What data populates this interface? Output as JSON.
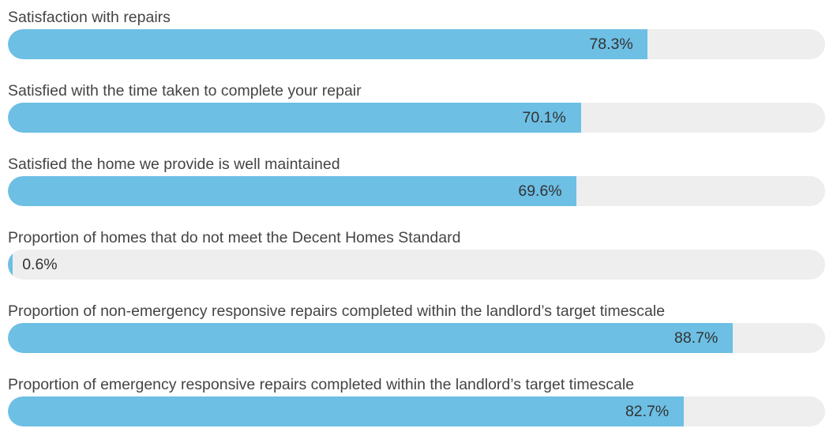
{
  "chart_data": {
    "type": "bar",
    "orientation": "horizontal",
    "xlim": [
      0,
      100
    ],
    "categories": [
      "Satisfaction with repairs",
      "Satisfied with the time taken to complete your repair",
      "Satisfied the home we provide is well maintained",
      "Proportion of homes that do not meet the Decent Homes Standard",
      "Proportion of non-emergency responsive repairs completed within the landlord’s target timescale",
      "Proportion of emergency responsive repairs completed within the landlord’s target timescale"
    ],
    "values": [
      78.3,
      70.1,
      69.6,
      0.6,
      88.7,
      82.7
    ],
    "value_labels": [
      "78.3%",
      "70.1%",
      "69.6%",
      "0.6%",
      "88.7%",
      "82.7%"
    ],
    "colors": {
      "fill": "#6dbfe4",
      "track": "#eeeeee",
      "label": "#444444",
      "value": "#333333"
    }
  }
}
